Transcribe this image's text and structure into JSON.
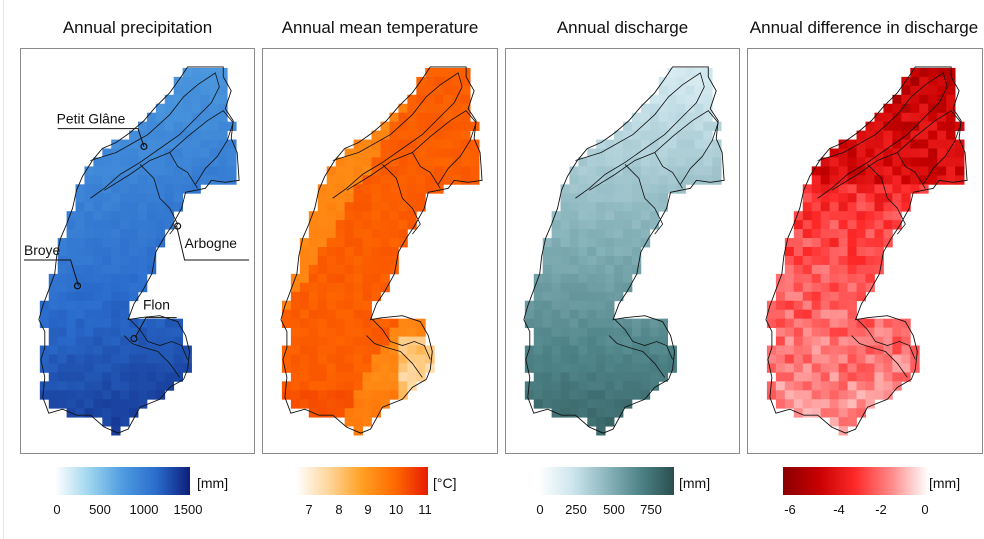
{
  "panels": [
    {
      "title": "Annual precipitation",
      "palette": "blue",
      "colors": [
        "#ffffff",
        "#9fd6ee",
        "#4f9ce0",
        "#2a6ccc",
        "#0d1f7a"
      ],
      "legend": {
        "unit": "[mm]",
        "ticks": [
          "0",
          "500",
          "1000",
          "1500"
        ]
      }
    },
    {
      "title": "Annual mean temperature",
      "palette": "orange",
      "colors": [
        "#ffffff",
        "#ffd59a",
        "#ffa023",
        "#ff6a00",
        "#e81b00"
      ],
      "legend": {
        "unit": "[°C]",
        "ticks": [
          "7",
          "8",
          "9",
          "10",
          "11"
        ]
      }
    },
    {
      "title": "Annual discharge",
      "palette": "teal",
      "colors": [
        "#ffffff",
        "#cfe6ee",
        "#8db7bf",
        "#4e8488",
        "#2a4e4f"
      ],
      "legend": {
        "unit": "[mm]",
        "ticks": [
          "0",
          "250",
          "500",
          "750"
        ]
      }
    },
    {
      "title": "Annual difference in discharge",
      "palette": "red",
      "colors": [
        "#8a0000",
        "#c80000",
        "#ff2a2a",
        "#ff8a8a",
        "#ffffff"
      ],
      "legend": {
        "unit": "[mm]",
        "ticks": [
          "-6",
          "-4",
          "-2",
          "0"
        ]
      }
    }
  ],
  "catchments": [
    "Petit Glâne",
    "Arbogne",
    "Broye",
    "Flon"
  ]
}
